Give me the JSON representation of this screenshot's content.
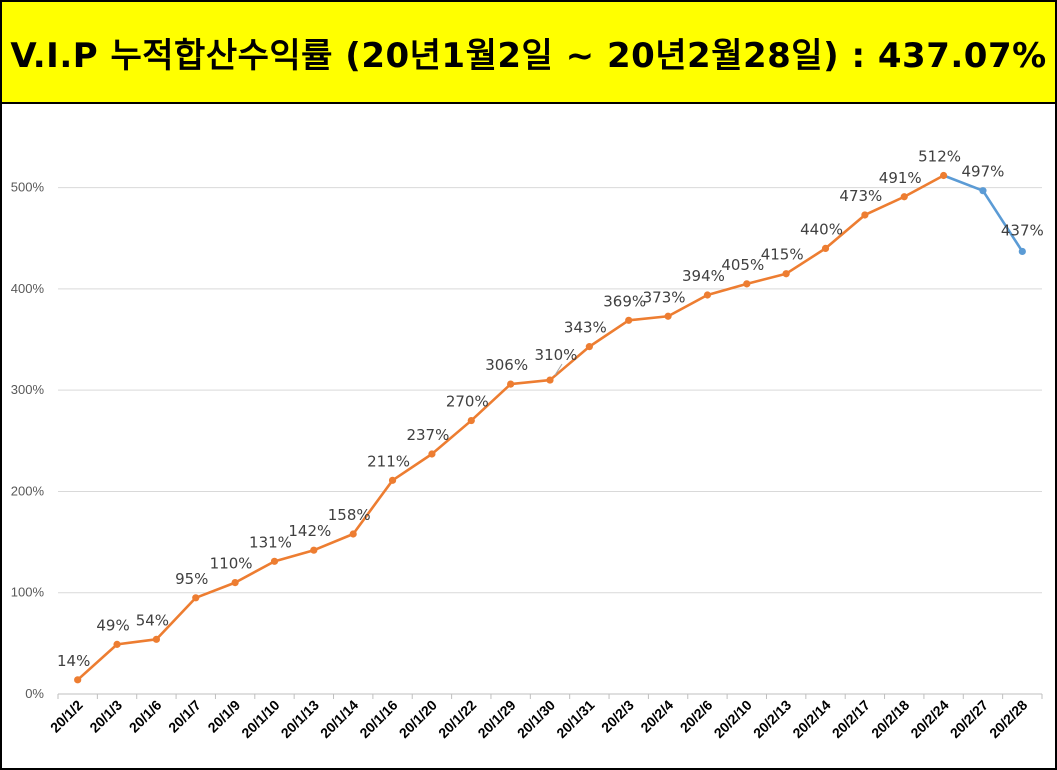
{
  "title": "V.I.P 누적합산수익률 (20년1월2일  ~  20년2월28일) : 437.07%",
  "colors": {
    "banner": "#ffff00",
    "line_main": "#ed7d31",
    "line_tail": "#5b9bd5",
    "grid": "#d9d9d9"
  },
  "chart_data": {
    "type": "line",
    "title": "V.I.P 누적합산수익률 (20년1월2일  ~  20년2월28일) : 437.07%",
    "xlabel": "",
    "ylabel": "",
    "ylim": [
      0,
      550
    ],
    "yticks": [
      0,
      100,
      200,
      300,
      400,
      500
    ],
    "ytick_labels": [
      "0%",
      "100%",
      "200%",
      "300%",
      "400%",
      "500%"
    ],
    "grid": true,
    "categories": [
      "20/1/2",
      "20/1/3",
      "20/1/6",
      "20/1/7",
      "20/1/9",
      "20/1/10",
      "20/1/13",
      "20/1/14",
      "20/1/16",
      "20/1/20",
      "20/1/22",
      "20/1/29",
      "20/1/30",
      "20/1/31",
      "20/2/3",
      "20/2/4",
      "20/2/6",
      "20/2/10",
      "20/2/13",
      "20/2/14",
      "20/2/17",
      "20/2/18",
      "20/2/24",
      "20/2/27",
      "20/2/28"
    ],
    "values": [
      14,
      49,
      54,
      95,
      110,
      131,
      142,
      158,
      211,
      237,
      270,
      306,
      310,
      343,
      369,
      373,
      394,
      405,
      415,
      440,
      473,
      491,
      512,
      497,
      437
    ],
    "data_labels": [
      "14%",
      "49%",
      "54%",
      "95%",
      "110%",
      "131%",
      "142%",
      "158%",
      "211%",
      "237%",
      "270%",
      "306%",
      "310%",
      "343%",
      "369%",
      "373%",
      "394%",
      "405%",
      "415%",
      "440%",
      "473%",
      "491%",
      "512%",
      "497%",
      "437%"
    ],
    "segment_colors": [
      "#ed7d31",
      "#ed7d31",
      "#ed7d31",
      "#ed7d31",
      "#ed7d31",
      "#ed7d31",
      "#ed7d31",
      "#ed7d31",
      "#ed7d31",
      "#ed7d31",
      "#ed7d31",
      "#ed7d31",
      "#ed7d31",
      "#ed7d31",
      "#ed7d31",
      "#ed7d31",
      "#ed7d31",
      "#ed7d31",
      "#ed7d31",
      "#ed7d31",
      "#ed7d31",
      "#ed7d31",
      "#5b9bd5",
      "#5b9bd5"
    ]
  }
}
